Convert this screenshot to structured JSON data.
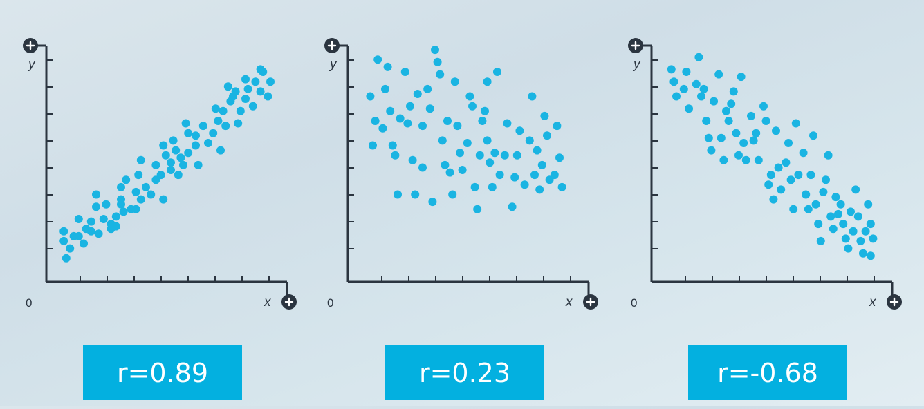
{
  "colors": {
    "axis": "#2b3540",
    "point": "#1ab4e2",
    "label_bg": "#03b0e0",
    "label_text": "#ffffff"
  },
  "chart_data": [
    {
      "type": "scatter",
      "x_label": "x",
      "y_label": "y",
      "origin_label": "0",
      "axis_end_icon": "plus-circle-icon",
      "correlation_label": "r=0.89",
      "x_ticks": 8,
      "y_ticks": 8,
      "xlim": [
        0,
        9
      ],
      "ylim": [
        0,
        9
      ],
      "points": [
        [
          0.7,
          1.1
        ],
        [
          0.8,
          0.4
        ],
        [
          0.7,
          1.5
        ],
        [
          0.95,
          0.8
        ],
        [
          1.1,
          1.3
        ],
        [
          1.3,
          1.3
        ],
        [
          1.3,
          2.0
        ],
        [
          1.5,
          1.0
        ],
        [
          1.6,
          1.6
        ],
        [
          1.8,
          1.5
        ],
        [
          1.8,
          1.9
        ],
        [
          2.0,
          2.5
        ],
        [
          2.0,
          3.0
        ],
        [
          2.1,
          1.4
        ],
        [
          2.3,
          2.0
        ],
        [
          2.4,
          2.6
        ],
        [
          2.6,
          1.6
        ],
        [
          2.6,
          1.8
        ],
        [
          2.8,
          1.7
        ],
        [
          2.8,
          2.1
        ],
        [
          3.0,
          2.6
        ],
        [
          3.0,
          2.8
        ],
        [
          3.0,
          3.3
        ],
        [
          3.1,
          2.3
        ],
        [
          3.2,
          3.6
        ],
        [
          3.4,
          2.4
        ],
        [
          3.6,
          3.1
        ],
        [
          3.6,
          2.4
        ],
        [
          3.7,
          3.8
        ],
        [
          3.8,
          4.4
        ],
        [
          3.8,
          2.8
        ],
        [
          4.0,
          3.3
        ],
        [
          4.2,
          3.0
        ],
        [
          4.4,
          4.2
        ],
        [
          4.4,
          3.6
        ],
        [
          4.6,
          3.8
        ],
        [
          4.7,
          2.8
        ],
        [
          4.7,
          5.0
        ],
        [
          4.8,
          4.6
        ],
        [
          5.0,
          4.3
        ],
        [
          5.0,
          4.0
        ],
        [
          5.1,
          5.2
        ],
        [
          5.2,
          4.8
        ],
        [
          5.3,
          3.8
        ],
        [
          5.4,
          4.5
        ],
        [
          5.5,
          4.2
        ],
        [
          5.6,
          5.9
        ],
        [
          5.7,
          5.5
        ],
        [
          5.7,
          4.7
        ],
        [
          6.0,
          5.0
        ],
        [
          6.0,
          5.4
        ],
        [
          6.1,
          4.2
        ],
        [
          6.3,
          5.8
        ],
        [
          6.5,
          5.1
        ],
        [
          6.7,
          5.5
        ],
        [
          6.8,
          6.5
        ],
        [
          6.9,
          6.0
        ],
        [
          7.0,
          4.8
        ],
        [
          7.1,
          6.4
        ],
        [
          7.2,
          5.8
        ],
        [
          7.3,
          7.4
        ],
        [
          7.4,
          6.8
        ],
        [
          7.5,
          7.0
        ],
        [
          7.6,
          7.2
        ],
        [
          7.7,
          5.9
        ],
        [
          7.8,
          6.4
        ],
        [
          8.0,
          6.9
        ],
        [
          8.0,
          7.7
        ],
        [
          8.1,
          7.3
        ],
        [
          8.3,
          6.6
        ],
        [
          8.4,
          7.6
        ],
        [
          8.6,
          7.2
        ],
        [
          8.7,
          8.0
        ],
        [
          8.6,
          8.1
        ],
        [
          8.9,
          7.0
        ],
        [
          9.0,
          7.6
        ]
      ]
    },
    {
      "type": "scatter",
      "x_label": "x",
      "y_label": "y",
      "origin_label": "0",
      "axis_end_icon": "plus-circle-icon",
      "correlation_label": "r=0.23",
      "x_ticks": 8,
      "y_ticks": 8,
      "xlim": [
        0,
        9
      ],
      "ylim": [
        0,
        9
      ],
      "points": [
        [
          0.9,
          7.0
        ],
        [
          1.0,
          5.0
        ],
        [
          1.1,
          6.0
        ],
        [
          1.2,
          8.5
        ],
        [
          1.4,
          5.7
        ],
        [
          1.5,
          7.3
        ],
        [
          1.6,
          8.2
        ],
        [
          1.7,
          6.4
        ],
        [
          1.8,
          5.0
        ],
        [
          1.9,
          4.6
        ],
        [
          2.0,
          3.0
        ],
        [
          2.1,
          6.1
        ],
        [
          2.3,
          8.0
        ],
        [
          2.4,
          5.9
        ],
        [
          2.5,
          6.6
        ],
        [
          2.6,
          4.4
        ],
        [
          2.7,
          3.0
        ],
        [
          2.8,
          7.1
        ],
        [
          3.0,
          5.8
        ],
        [
          3.0,
          4.1
        ],
        [
          3.2,
          7.3
        ],
        [
          3.3,
          6.5
        ],
        [
          3.4,
          2.7
        ],
        [
          3.5,
          8.9
        ],
        [
          3.6,
          8.4
        ],
        [
          3.7,
          7.9
        ],
        [
          3.8,
          5.2
        ],
        [
          3.9,
          4.2
        ],
        [
          4.0,
          6.0
        ],
        [
          4.1,
          3.9
        ],
        [
          4.2,
          3.0
        ],
        [
          4.3,
          7.6
        ],
        [
          4.4,
          5.8
        ],
        [
          4.5,
          4.7
        ],
        [
          4.6,
          4.0
        ],
        [
          4.8,
          5.1
        ],
        [
          4.9,
          7.0
        ],
        [
          5.0,
          6.6
        ],
        [
          5.1,
          3.3
        ],
        [
          5.2,
          2.4
        ],
        [
          5.3,
          4.6
        ],
        [
          5.4,
          6.0
        ],
        [
          5.5,
          6.4
        ],
        [
          5.6,
          7.6
        ],
        [
          5.6,
          5.2
        ],
        [
          5.7,
          4.3
        ],
        [
          5.8,
          3.3
        ],
        [
          5.9,
          4.7
        ],
        [
          6.0,
          8.0
        ],
        [
          6.1,
          3.8
        ],
        [
          6.3,
          4.6
        ],
        [
          6.4,
          5.9
        ],
        [
          6.6,
          2.5
        ],
        [
          6.7,
          3.7
        ],
        [
          6.8,
          4.6
        ],
        [
          6.9,
          5.6
        ],
        [
          7.1,
          3.4
        ],
        [
          7.3,
          5.2
        ],
        [
          7.4,
          7.0
        ],
        [
          7.5,
          3.8
        ],
        [
          7.6,
          4.8
        ],
        [
          7.7,
          3.2
        ],
        [
          7.8,
          4.2
        ],
        [
          7.9,
          6.2
        ],
        [
          8.0,
          5.4
        ],
        [
          8.1,
          3.6
        ],
        [
          8.3,
          3.8
        ],
        [
          8.4,
          5.8
        ],
        [
          8.5,
          4.5
        ],
        [
          8.6,
          3.3
        ]
      ]
    },
    {
      "type": "scatter",
      "x_label": "x",
      "y_label": "y",
      "origin_label": "0",
      "axis_end_icon": "plus-circle-icon",
      "correlation_label": "r=-0.68",
      "x_ticks": 8,
      "y_ticks": 8,
      "xlim": [
        0,
        9
      ],
      "ylim": [
        0,
        9
      ],
      "points": [
        [
          0.8,
          8.1
        ],
        [
          0.9,
          7.6
        ],
        [
          1.0,
          7.0
        ],
        [
          1.3,
          7.3
        ],
        [
          1.4,
          8.0
        ],
        [
          1.5,
          6.5
        ],
        [
          1.8,
          7.5
        ],
        [
          1.9,
          8.6
        ],
        [
          2.0,
          7.0
        ],
        [
          2.1,
          7.3
        ],
        [
          2.2,
          6.0
        ],
        [
          2.3,
          5.3
        ],
        [
          2.4,
          4.8
        ],
        [
          2.5,
          6.8
        ],
        [
          2.7,
          7.9
        ],
        [
          2.8,
          5.3
        ],
        [
          2.9,
          4.4
        ],
        [
          3.0,
          6.4
        ],
        [
          3.1,
          6.0
        ],
        [
          3.2,
          6.7
        ],
        [
          3.3,
          7.2
        ],
        [
          3.4,
          5.5
        ],
        [
          3.5,
          4.6
        ],
        [
          3.6,
          7.8
        ],
        [
          3.7,
          5.1
        ],
        [
          3.8,
          4.4
        ],
        [
          4.0,
          6.2
        ],
        [
          4.1,
          5.2
        ],
        [
          4.2,
          5.5
        ],
        [
          4.3,
          4.4
        ],
        [
          4.5,
          6.6
        ],
        [
          4.6,
          6.0
        ],
        [
          4.7,
          3.4
        ],
        [
          4.8,
          3.8
        ],
        [
          4.9,
          2.8
        ],
        [
          5.0,
          5.6
        ],
        [
          5.1,
          4.1
        ],
        [
          5.2,
          3.2
        ],
        [
          5.4,
          4.3
        ],
        [
          5.5,
          5.1
        ],
        [
          5.6,
          3.6
        ],
        [
          5.7,
          2.4
        ],
        [
          5.8,
          5.9
        ],
        [
          5.9,
          3.8
        ],
        [
          6.1,
          4.7
        ],
        [
          6.2,
          3.0
        ],
        [
          6.3,
          2.4
        ],
        [
          6.4,
          3.8
        ],
        [
          6.5,
          5.4
        ],
        [
          6.6,
          2.6
        ],
        [
          6.7,
          1.8
        ],
        [
          6.8,
          1.1
        ],
        [
          6.9,
          3.1
        ],
        [
          7.0,
          3.6
        ],
        [
          7.1,
          4.6
        ],
        [
          7.2,
          2.1
        ],
        [
          7.3,
          1.6
        ],
        [
          7.4,
          2.9
        ],
        [
          7.5,
          2.2
        ],
        [
          7.6,
          2.6
        ],
        [
          7.7,
          1.8
        ],
        [
          7.8,
          1.2
        ],
        [
          7.9,
          0.8
        ],
        [
          8.0,
          2.3
        ],
        [
          8.1,
          1.5
        ],
        [
          8.2,
          3.2
        ],
        [
          8.3,
          2.1
        ],
        [
          8.4,
          1.1
        ],
        [
          8.5,
          0.6
        ],
        [
          8.6,
          1.5
        ],
        [
          8.7,
          2.6
        ],
        [
          8.8,
          0.5
        ],
        [
          8.8,
          1.8
        ],
        [
          8.9,
          1.2
        ]
      ]
    }
  ]
}
